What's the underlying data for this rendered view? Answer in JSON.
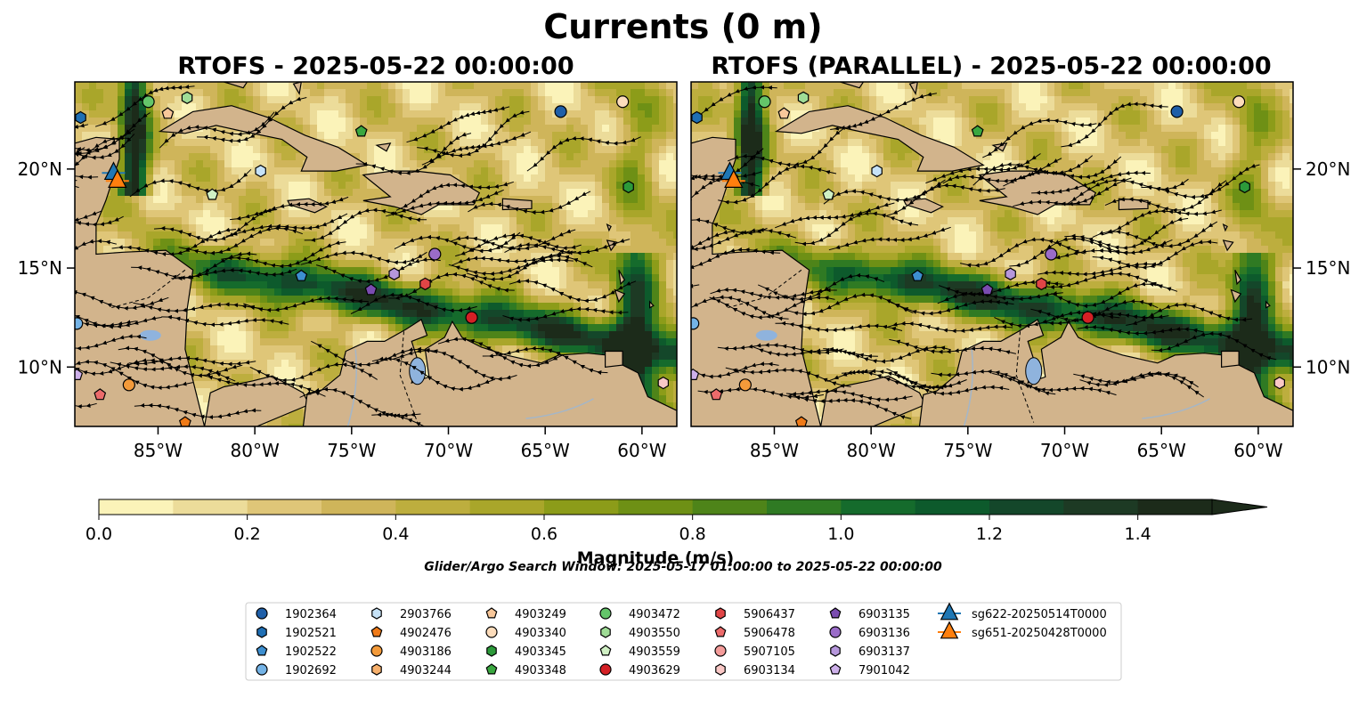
{
  "figure": {
    "suptitle": "Currents (0 m)",
    "note": "Glider/Argo Search Window: 2025-05-17 01:00:00 to 2025-05-22 00:00:00"
  },
  "colors": {
    "land": "#d2b48c",
    "lakes": "#8fb3dd",
    "rivers": "#a4b6c8",
    "colormap": [
      "#fbf3b9",
      "#ecdc9a",
      "#dfc678",
      "#cfb55a",
      "#bdae3e",
      "#a9a62a",
      "#8c9c19",
      "#6e9015",
      "#4e8419",
      "#2f7a23",
      "#156b2c",
      "#0d5a2c",
      "#14472a",
      "#1d3a24",
      "#1c2b1a"
    ]
  },
  "chart_data": [
    {
      "type": "heatmap",
      "subtype": "map with current magnitude field and streamlines",
      "title": "RTOFS - 2025-05-22 00:00:00",
      "x_ticks": [
        "85°W",
        "80°W",
        "75°W",
        "70°W",
        "65°W",
        "60°W"
      ],
      "y_ticks": [
        "20°N",
        "15°N",
        "10°N"
      ],
      "xlim": [
        -89.3,
        -58.2
      ],
      "ylim": [
        7.0,
        24.4
      ],
      "y_axis_side": "left",
      "streamlines": true
    },
    {
      "type": "heatmap",
      "subtype": "map with current magnitude field and streamlines",
      "title": "RTOFS (PARALLEL) - 2025-05-22 00:00:00",
      "x_ticks": [
        "85°W",
        "80°W",
        "75°W",
        "70°W",
        "65°W",
        "60°W"
      ],
      "y_ticks": [
        "20°N",
        "15°N",
        "10°N"
      ],
      "xlim": [
        -89.3,
        -58.2
      ],
      "ylim": [
        7.0,
        24.4
      ],
      "y_axis_side": "right",
      "streamlines": true
    }
  ],
  "colorbar": {
    "label": "Magnitude (m/s)",
    "min": 0.0,
    "max": 1.5,
    "step": 0.1,
    "extend": "max",
    "ticks": [
      {
        "value": 0.0,
        "label": "0.0"
      },
      {
        "value": 0.2,
        "label": "0.2"
      },
      {
        "value": 0.4,
        "label": "0.4"
      },
      {
        "value": 0.6,
        "label": "0.6"
      },
      {
        "value": 0.8,
        "label": "0.8"
      },
      {
        "value": 1.0,
        "label": "1.0"
      },
      {
        "value": 1.2,
        "label": "1.2"
      },
      {
        "value": 1.4,
        "label": "1.4"
      }
    ]
  },
  "legend": {
    "placement": "bottom-center",
    "entries": [
      {
        "label": "1902364",
        "marker": "circle",
        "color": "#1f5fa8"
      },
      {
        "label": "1902521",
        "marker": "hexagon",
        "color": "#1f6fb4"
      },
      {
        "label": "1902522",
        "marker": "pentagon",
        "color": "#3d8fd0"
      },
      {
        "label": "1902692",
        "marker": "circle",
        "color": "#74b3e6"
      },
      {
        "label": "2903766",
        "marker": "hexagon",
        "color": "#c6e2f7"
      },
      {
        "label": "4902476",
        "marker": "pentagon",
        "color": "#ef7a18"
      },
      {
        "label": "4903186",
        "marker": "circle",
        "color": "#f39a3a"
      },
      {
        "label": "4903244",
        "marker": "hexagon",
        "color": "#f7b06c"
      },
      {
        "label": "4903249",
        "marker": "pentagon",
        "color": "#f8c79a"
      },
      {
        "label": "4903340",
        "marker": "circle",
        "color": "#fcdcbb"
      },
      {
        "label": "4903345",
        "marker": "hexagon",
        "color": "#2c9a3a"
      },
      {
        "label": "4903348",
        "marker": "pentagon",
        "color": "#3aa840"
      },
      {
        "label": "4903472",
        "marker": "circle",
        "color": "#64c56a"
      },
      {
        "label": "4903550",
        "marker": "hexagon",
        "color": "#9fdc96"
      },
      {
        "label": "4903559",
        "marker": "pentagon",
        "color": "#d0f0c4"
      },
      {
        "label": "4903629",
        "marker": "circle",
        "color": "#d42025"
      },
      {
        "label": "5906437",
        "marker": "hexagon",
        "color": "#e04546"
      },
      {
        "label": "5906478",
        "marker": "pentagon",
        "color": "#ec6b6b"
      },
      {
        "label": "5907105",
        "marker": "circle",
        "color": "#f49c9a"
      },
      {
        "label": "6903134",
        "marker": "hexagon",
        "color": "#fac8c6"
      },
      {
        "label": "6903135",
        "marker": "pentagon",
        "color": "#7a4cb0"
      },
      {
        "label": "6903136",
        "marker": "circle",
        "color": "#9a6cc8"
      },
      {
        "label": "6903137",
        "marker": "hexagon",
        "color": "#b697dc"
      },
      {
        "label": "7901042",
        "marker": "pentagon",
        "color": "#cdb0ea"
      },
      {
        "label": "sg622-20250514T0000",
        "marker": "triangle-line",
        "color": "#1f77b4"
      },
      {
        "label": "sg651-20250428T0000",
        "marker": "triangle-line",
        "color": "#ff7f0e"
      }
    ]
  },
  "floats": [
    {
      "id": "1902364",
      "lon": -64.2,
      "lat": 22.9
    },
    {
      "id": "1902521",
      "lon": -89.0,
      "lat": 22.6
    },
    {
      "id": "1902522",
      "lon": -77.6,
      "lat": 14.6
    },
    {
      "id": "1902692",
      "lon": -89.2,
      "lat": 12.2
    },
    {
      "id": "2903766",
      "lon": -79.7,
      "lat": 19.9
    },
    {
      "id": "4902476",
      "lon": -83.6,
      "lat": 7.2
    },
    {
      "id": "4903186",
      "lon": -86.5,
      "lat": 9.1
    },
    {
      "id": "4903244",
      "lon": -89.5,
      "lat": 21.5
    },
    {
      "id": "4903249",
      "lon": -84.5,
      "lat": 22.8
    },
    {
      "id": "4903340",
      "lon": -61.0,
      "lat": 23.4
    },
    {
      "id": "4903345",
      "lon": -60.7,
      "lat": 19.1
    },
    {
      "id": "4903348",
      "lon": -74.5,
      "lat": 21.9
    },
    {
      "id": "4903472",
      "lon": -85.5,
      "lat": 23.4
    },
    {
      "id": "4903550",
      "lon": -83.5,
      "lat": 23.6
    },
    {
      "id": "4903559",
      "lon": -82.2,
      "lat": 18.7
    },
    {
      "id": "4903629",
      "lon": -68.8,
      "lat": 12.5
    },
    {
      "id": "5906437",
      "lon": -71.2,
      "lat": 14.2
    },
    {
      "id": "5906478",
      "lon": -88.0,
      "lat": 8.6
    },
    {
      "id": "5907105",
      "lon": -89.6,
      "lat": 10.1
    },
    {
      "id": "6903134",
      "lon": -58.9,
      "lat": 9.2
    },
    {
      "id": "6903135",
      "lon": -74.0,
      "lat": 13.9
    },
    {
      "id": "6903136",
      "lon": -70.7,
      "lat": 15.7
    },
    {
      "id": "6903137",
      "lon": -72.8,
      "lat": 14.7
    },
    {
      "id": "7901042",
      "lon": -89.2,
      "lat": 9.6
    },
    {
      "id": "sg622-20250514T0000",
      "lon": -87.3,
      "lat": 19.8
    },
    {
      "id": "sg651-20250428T0000",
      "lon": -87.1,
      "lat": 19.4
    }
  ]
}
